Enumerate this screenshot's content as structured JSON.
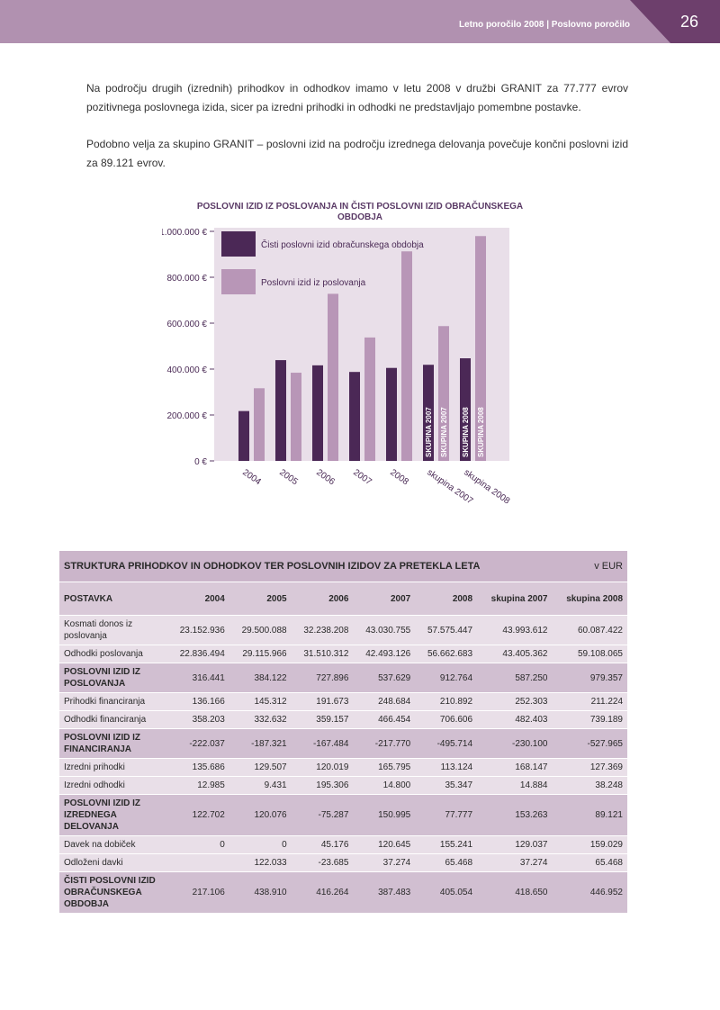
{
  "header": {
    "title": "Letno poročilo 2008 | Poslovno poročilo",
    "page_number": "26"
  },
  "body": {
    "paragraph1": "Na področju drugih (izrednih) prihodkov in odhodkov imamo v letu 2008 v družbi GRANIT za 77.777 evrov pozitivnega poslovnega izida, sicer pa izredni prihodki in odhodki ne predstavljajo pomembne postavke.",
    "paragraph2": "Podobno velja za skupino GRANIT – poslovni izid na področju izrednega delovanja povečuje končni poslovni izid za 89.121 evrov."
  },
  "chart_data": {
    "type": "bar",
    "title": "POSLOVNI IZID IZ POSLOVANJA IN ČISTI POSLOVNI IZID OBRAČUNSKEGA OBDOBJA",
    "categories": [
      "2004",
      "2005",
      "2006",
      "2007",
      "2008",
      "skupina 2007",
      "skupina 2008"
    ],
    "series": [
      {
        "name": "Čisti poslovni izid obračunskega obdobja",
        "color": "#4b2856",
        "values": [
          217106,
          438910,
          416264,
          387483,
          405054,
          418650,
          446952
        ]
      },
      {
        "name": "Poslovni izid iz poslovanja",
        "color": "#b896b7",
        "values": [
          316441,
          384122,
          727896,
          537629,
          912764,
          587250,
          979357
        ]
      }
    ],
    "bar_labels": [
      "",
      "",
      "",
      "",
      "",
      "SKUPINA 2007",
      "SKUPINA 2008"
    ],
    "yticks": [
      "0 €",
      "200.000 €",
      "400.000 €",
      "600.000 €",
      "800.000 €",
      "1.000.000 €"
    ],
    "ylim": [
      0,
      1000000
    ],
    "legend_position": "top-left",
    "background": "#e9dfe9"
  },
  "table": {
    "title": "STRUKTURA PRIHODKOV IN ODHODKOV TER POSLOVNIH IZIDOV ZA PRETEKLA LETA",
    "unit": "v EUR",
    "headers": [
      "POSTAVKA",
      "2004",
      "2005",
      "2006",
      "2007",
      "2008",
      "skupina 2007",
      "skupina 2008"
    ],
    "rows": [
      {
        "label": "Kosmati donos iz poslovanja",
        "values": [
          "23.152.936",
          "29.500.088",
          "32.238.208",
          "43.030.755",
          "57.575.447",
          "43.993.612",
          "60.087.422"
        ]
      },
      {
        "label": "Odhodki poslovanja",
        "values": [
          "22.836.494",
          "29.115.966",
          "31.510.312",
          "42.493.126",
          "56.662.683",
          "43.405.362",
          "59.108.065"
        ]
      },
      {
        "label": "POSLOVNI IZID IZ POSLOVANJA",
        "values": [
          "316.441",
          "384.122",
          "727.896",
          "537.629",
          "912.764",
          "587.250",
          "979.357"
        ]
      },
      {
        "label": "Prihodki financiranja",
        "values": [
          "136.166",
          "145.312",
          "191.673",
          "248.684",
          "210.892",
          "252.303",
          "211.224"
        ]
      },
      {
        "label": "Odhodki financiranja",
        "values": [
          "358.203",
          "332.632",
          "359.157",
          "466.454",
          "706.606",
          "482.403",
          "739.189"
        ]
      },
      {
        "label": "POSLOVNI IZID IZ FINANCIRANJA",
        "values": [
          "-222.037",
          "-187.321",
          "-167.484",
          "-217.770",
          "-495.714",
          "-230.100",
          "-527.965"
        ]
      },
      {
        "label": "Izredni prihodki",
        "values": [
          "135.686",
          "129.507",
          "120.019",
          "165.795",
          "113.124",
          "168.147",
          "127.369"
        ]
      },
      {
        "label": "Izredni odhodki",
        "values": [
          "12.985",
          "9.431",
          "195.306",
          "14.800",
          "35.347",
          "14.884",
          "38.248"
        ]
      },
      {
        "label": "POSLOVNI IZID IZ IZREDNEGA DELOVANJA",
        "values": [
          "122.702",
          "120.076",
          "-75.287",
          "150.995",
          "77.777",
          "153.263",
          "89.121"
        ]
      },
      {
        "label": "Davek na dobiček",
        "values": [
          "0",
          "0",
          "45.176",
          "120.645",
          "155.241",
          "129.037",
          "159.029"
        ]
      },
      {
        "label": "Odloženi davki",
        "values": [
          "",
          "122.033",
          "-23.685",
          "37.274",
          "65.468",
          "37.274",
          "65.468"
        ]
      },
      {
        "label": "ČISTI POSLOVNI IZID OBRAČUNSKEGA OBDOBJA",
        "values": [
          "217.106",
          "438.910",
          "416.264",
          "387.483",
          "405.054",
          "418.650",
          "446.952"
        ]
      }
    ]
  }
}
